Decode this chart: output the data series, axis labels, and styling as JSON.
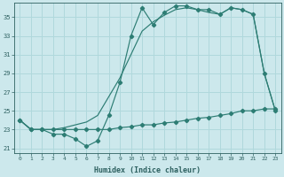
{
  "xlabel": "Humidex (Indice chaleur)",
  "bg_color": "#cce8ec",
  "grid_color": "#b0d8dc",
  "line_color": "#2d7d74",
  "xlim": [
    -0.5,
    23.5
  ],
  "ylim": [
    20.5,
    36.5
  ],
  "xticks": [
    0,
    1,
    2,
    3,
    4,
    5,
    6,
    7,
    8,
    9,
    10,
    11,
    12,
    13,
    14,
    15,
    16,
    17,
    18,
    19,
    20,
    21,
    22,
    23
  ],
  "yticks": [
    21,
    23,
    25,
    27,
    29,
    31,
    33,
    35
  ],
  "series1": [
    24.0,
    23.0,
    23.0,
    22.5,
    22.5,
    22.0,
    21.2,
    21.8,
    24.5,
    28.0,
    33.0,
    36.0,
    34.2,
    35.5,
    36.2,
    36.2,
    35.8,
    35.8,
    35.3,
    36.0,
    35.8,
    35.3,
    29.0,
    25.0
  ],
  "series2": [
    24.0,
    23.0,
    23.0,
    23.0,
    23.0,
    23.0,
    23.0,
    23.0,
    23.0,
    23.2,
    23.3,
    23.5,
    23.5,
    23.7,
    23.8,
    24.0,
    24.2,
    24.3,
    24.5,
    24.7,
    25.0,
    25.0,
    25.2,
    25.2
  ],
  "series3": [
    24.0,
    23.0,
    23.0,
    23.0,
    23.2,
    23.5,
    23.8,
    24.5,
    26.5,
    28.5,
    31.0,
    33.5,
    34.5,
    35.2,
    35.8,
    36.0,
    35.8,
    35.5,
    35.3,
    36.0,
    35.8,
    35.3,
    29.0,
    25.0
  ]
}
